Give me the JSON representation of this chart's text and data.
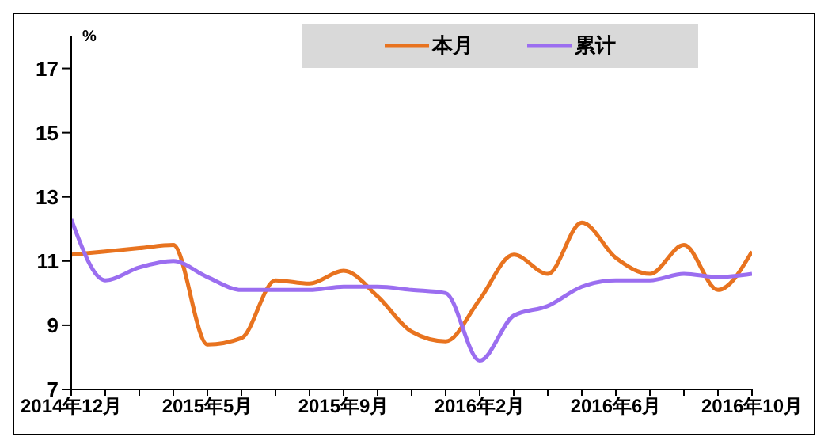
{
  "chart_data": {
    "type": "line",
    "ylabel": "%",
    "categories": [
      "2014年12月",
      null,
      null,
      null,
      "2015年5月",
      null,
      null,
      null,
      "2015年9月",
      null,
      null,
      null,
      "2016年2月",
      null,
      null,
      null,
      "2016年6月",
      null,
      null,
      null,
      "2016年10月"
    ],
    "series": [
      {
        "name": "本月",
        "color": "#e8731f",
        "values": [
          11.2,
          11.3,
          11.4,
          11.5,
          8.4,
          8.6,
          10.4,
          10.3,
          10.7,
          9.9,
          8.8,
          8.5,
          9.8,
          11.2,
          10.6,
          12.2,
          11.1,
          10.6,
          11.5,
          10.1,
          11.3
        ]
      },
      {
        "name": "累计",
        "color": "#9b6ef0",
        "values": [
          12.3,
          10.4,
          10.8,
          11.0,
          10.5,
          10.1,
          10.1,
          10.1,
          10.2,
          10.2,
          10.1,
          10.0,
          7.9,
          9.3,
          9.6,
          10.2,
          10.4,
          10.4,
          10.6,
          10.5,
          10.6
        ]
      }
    ],
    "ylim": [
      7,
      18
    ],
    "yticks": [
      7,
      9,
      11,
      13,
      15,
      17
    ],
    "grid": false,
    "legend": "top",
    "marker": "none",
    "line_style": "solid"
  }
}
